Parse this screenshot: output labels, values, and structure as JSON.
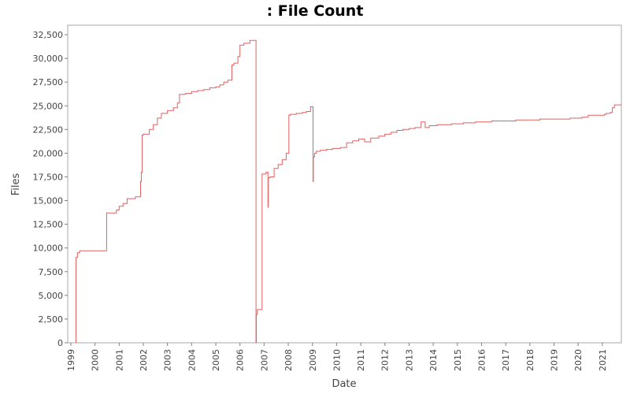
{
  "chart_data": {
    "type": "line",
    "title": ": File Count",
    "xlabel": "Date",
    "ylabel": "Files",
    "ylim": [
      0,
      33500
    ],
    "xlim": [
      "1998-11-15",
      "2021-10-15"
    ],
    "grid": false,
    "yticks": [
      0,
      2500,
      5000,
      7500,
      10000,
      12500,
      15000,
      17500,
      20000,
      22500,
      25000,
      27500,
      30000,
      32500
    ],
    "ytick_labels": [
      "0",
      "2,500",
      "5,000",
      "7,500",
      "10,000",
      "12,500",
      "15,000",
      "17,500",
      "20,000",
      "22,500",
      "25,000",
      "27,500",
      "30,000",
      "32,500"
    ],
    "xticks": [
      "1999",
      "2000",
      "2001",
      "2002",
      "2003",
      "2004",
      "2005",
      "2006",
      "2007",
      "2008",
      "2009",
      "2010",
      "2011",
      "2012",
      "2013",
      "2014",
      "2015",
      "2016",
      "2017",
      "2018",
      "2019",
      "2020",
      "2021"
    ],
    "series": [
      {
        "color": "#e06060",
        "step": true,
        "x": [
          "1999-03-15",
          "1999-03-20",
          "1999-04-10",
          "1999-05-15",
          "2000-06-25",
          "2000-11-01",
          "2000-11-20",
          "2001-01-01",
          "2001-03-01",
          "2001-05-01",
          "2001-09-01",
          "2001-11-20",
          "2001-12-01",
          "2001-12-15",
          "2002-01-01",
          "2002-04-01",
          "2002-06-01",
          "2002-08-01",
          "2002-10-01",
          "2003-01-01",
          "2003-04-01",
          "2003-06-01",
          "2003-07-01",
          "2003-10-01",
          "2004-01-01",
          "2004-04-01",
          "2004-07-01",
          "2004-10-01",
          "2005-01-01",
          "2005-03-01",
          "2005-05-01",
          "2005-07-01",
          "2005-09-01",
          "2005-10-01",
          "2005-12-01",
          "2006-01-01",
          "2006-03-01",
          "2006-06-01",
          "2006-09-01",
          "2006-09-05",
          "2006-09-20",
          "2006-10-01",
          "2006-12-01",
          "2007-02-01",
          "2007-03-01",
          "2007-03-05",
          "2007-04-01",
          "2007-06-01",
          "2007-08-01",
          "2007-10-01",
          "2007-12-01",
          "2008-01-10",
          "2008-02-01",
          "2008-05-01",
          "2008-08-01",
          "2008-10-01",
          "2008-12-01",
          "2009-01-10",
          "2009-01-15",
          "2009-02-01",
          "2009-03-01",
          "2009-05-01",
          "2009-08-01",
          "2009-11-01",
          "2010-03-01",
          "2010-06-01",
          "2010-09-01",
          "2010-12-01",
          "2011-03-01",
          "2011-06-01",
          "2011-10-01",
          "2012-01-01",
          "2012-04-01",
          "2012-07-01",
          "2012-10-01",
          "2013-01-01",
          "2013-04-01",
          "2013-07-01",
          "2013-09-01",
          "2013-11-01",
          "2014-03-01",
          "2014-06-01",
          "2014-10-01",
          "2015-04-01",
          "2015-10-01",
          "2016-06-01",
          "2017-06-01",
          "2018-06-01",
          "2019-03-01",
          "2019-09-01",
          "2020-03-01",
          "2020-06-01",
          "2021-02-01",
          "2021-03-01",
          "2021-05-01",
          "2021-06-01",
          "2021-07-01"
        ],
        "y": [
          0,
          9000,
          9500,
          9700,
          13700,
          13700,
          14000,
          14400,
          14700,
          15200,
          15400,
          17000,
          18000,
          21900,
          22000,
          22500,
          23000,
          23700,
          24200,
          24500,
          24800,
          25300,
          26200,
          26300,
          26500,
          26600,
          26700,
          26900,
          27000,
          27200,
          27500,
          27700,
          29300,
          29500,
          30200,
          31400,
          31600,
          31900,
          0,
          3000,
          3500,
          3500,
          17800,
          18000,
          14300,
          17400,
          17500,
          18400,
          18800,
          19300,
          20000,
          24000,
          24100,
          24200,
          24300,
          24400,
          24900,
          17000,
          19600,
          20000,
          20200,
          20300,
          20400,
          20500,
          20600,
          21100,
          21300,
          21500,
          21200,
          21600,
          21800,
          22000,
          22200,
          22400,
          22500,
          22600,
          22700,
          23300,
          22700,
          22900,
          23000,
          23000,
          23100,
          23200,
          23300,
          23400,
          23500,
          23600,
          23600,
          23700,
          23800,
          24000,
          24100,
          24200,
          24300,
          24800,
          25100
        ]
      }
    ]
  }
}
